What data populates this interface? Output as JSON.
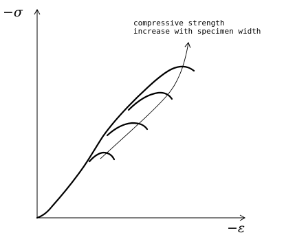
{
  "diagram": {
    "y_axis_label": "−σ",
    "x_axis_label": "−ε",
    "annotation_line1": "compressive strength",
    "annotation_line2": "increase with specimen width"
  },
  "colors": {
    "stroke": "#000000",
    "background": "#ffffff"
  }
}
